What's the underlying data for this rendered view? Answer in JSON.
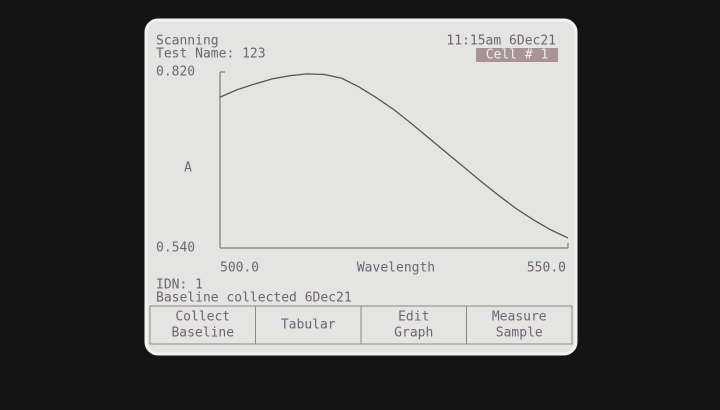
{
  "header": {
    "status": "Scanning",
    "test_name": "Test Name: 123",
    "time": "11:15am 6Dec21",
    "cell": "Cell # 1"
  },
  "chart_data": {
    "type": "line",
    "ylabel": "A",
    "xlabel": "Wavelength",
    "x": [
      500,
      502.5,
      505,
      507.5,
      510,
      512.5,
      515,
      517.5,
      520,
      522.5,
      525,
      527.5,
      530,
      532.5,
      535,
      537.5,
      540,
      542.5,
      545,
      547.5,
      550
    ],
    "values": [
      0.78,
      0.792,
      0.801,
      0.809,
      0.814,
      0.817,
      0.816,
      0.81,
      0.796,
      0.779,
      0.76,
      0.738,
      0.715,
      0.692,
      0.669,
      0.646,
      0.624,
      0.603,
      0.585,
      0.569,
      0.556
    ],
    "color": "#555555",
    "xlim": [
      500,
      550
    ],
    "ylim": [
      0.54,
      0.82
    ],
    "xticks": [
      {
        "value": 500,
        "label": "500.0"
      },
      {
        "value": 550,
        "label": "550.0"
      }
    ],
    "yticks": [
      {
        "value": 0.54,
        "label": "0.540"
      },
      {
        "value": 0.82,
        "label": "0.820"
      }
    ]
  },
  "footer": {
    "idn": "IDN: 1",
    "message": "Baseline collected 6Dec21"
  },
  "buttons": [
    [
      "Collect",
      "Baseline"
    ],
    [
      "Tabular"
    ],
    [
      "Edit",
      "Graph"
    ],
    [
      "Measure",
      "Sample"
    ]
  ]
}
